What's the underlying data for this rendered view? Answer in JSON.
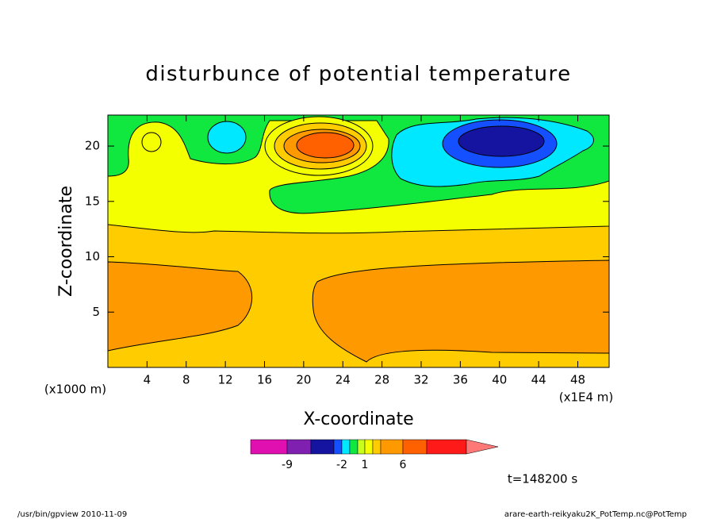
{
  "chart_data": {
    "type": "contour",
    "title": "disturbunce of potential temperature",
    "x_label": "X-coordinate",
    "y_label": "Z-coordinate",
    "x_unit": "(x1000 m)",
    "x_unit_right": "(x1E4 m)",
    "xlim": [
      0,
      51.2
    ],
    "xticks": [
      4,
      8,
      12,
      16,
      20,
      24,
      28,
      32,
      36,
      40,
      44,
      48
    ],
    "ylim": [
      0,
      22.8
    ],
    "yticks": [
      5,
      10,
      15,
      20
    ],
    "colorbar": {
      "levels": [
        -12,
        -9,
        -6,
        -3,
        -2,
        -1,
        0,
        1,
        2,
        3,
        6,
        9,
        12
      ],
      "colors": [
        "#e010b0",
        "#8020b0",
        "#1414a0",
        "#1450ff",
        "#00e8ff",
        "#10e840",
        "#c8ff20",
        "#f4ff00",
        "#ffcc00",
        "#ff9900",
        "#ff6000",
        "#ff1a1a",
        "#ff7878",
        "#ffb4b4"
      ],
      "ticks": [
        -9,
        -2,
        1,
        6
      ]
    },
    "time_label": "t=148200 s",
    "footer_left": "/usr/bin/gpview  2010-11-09",
    "footer_right": "arare-earth-reikyaku2K_PotTemp.nc@PotTemp"
  }
}
